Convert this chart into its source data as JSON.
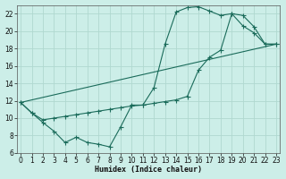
{
  "xlabel": "Humidex (Indice chaleur)",
  "bg_color": "#cceee8",
  "grid_color": "#b0d8d0",
  "line_color": "#1a6b5a",
  "xlim": [
    0,
    23
  ],
  "ylim": [
    6,
    23
  ],
  "yticks": [
    6,
    8,
    10,
    12,
    14,
    16,
    18,
    20,
    22
  ],
  "xticks": [
    0,
    1,
    2,
    3,
    4,
    5,
    6,
    7,
    8,
    9,
    10,
    11,
    12,
    13,
    14,
    15,
    16,
    17,
    18,
    19,
    20,
    21,
    22,
    23
  ],
  "curve1_x": [
    0,
    1,
    2,
    3,
    4,
    5,
    6,
    7,
    8,
    9,
    10,
    11,
    12,
    13,
    14,
    15,
    16,
    17,
    18,
    19,
    20,
    21,
    22,
    23
  ],
  "curve1_y": [
    11.8,
    10.6,
    9.5,
    8.5,
    7.2,
    7.8,
    7.2,
    7.0,
    6.7,
    9.0,
    11.5,
    11.5,
    13.5,
    18.5,
    22.2,
    22.7,
    22.8,
    22.3,
    21.8,
    22.0,
    20.6,
    19.8,
    18.5,
    18.5
  ],
  "curve2_x": [
    0,
    1,
    2,
    3,
    4,
    5,
    6,
    7,
    8,
    9,
    10,
    11,
    12,
    13,
    14,
    15,
    16,
    17,
    18,
    19,
    20,
    21,
    22,
    23
  ],
  "curve2_y": [
    11.8,
    10.6,
    9.8,
    10.0,
    10.2,
    10.4,
    10.6,
    10.8,
    11.0,
    11.2,
    11.4,
    11.5,
    11.7,
    11.9,
    12.1,
    12.5,
    15.5,
    17.0,
    17.8,
    22.0,
    21.8,
    20.5,
    18.5,
    18.5
  ],
  "curve3_x": [
    0,
    23
  ],
  "curve3_y": [
    11.8,
    18.5
  ]
}
